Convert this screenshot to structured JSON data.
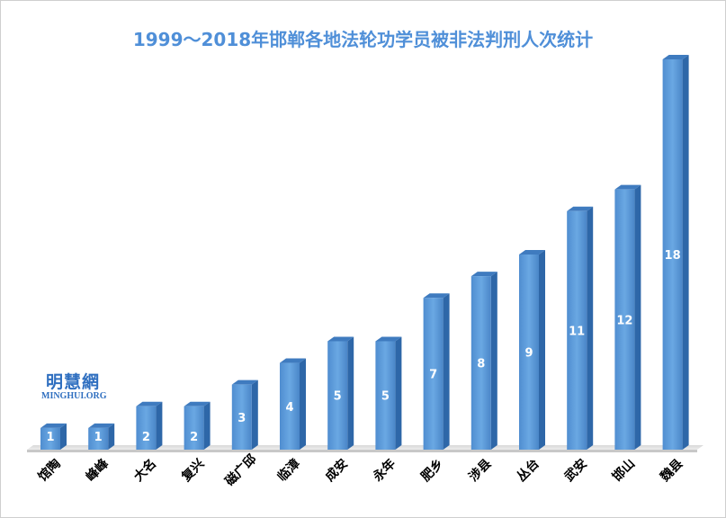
{
  "chart_data": {
    "type": "bar",
    "title": "1999～2018年邯郸各地法轮功学员被非法判刑人次统计",
    "categories": [
      "馆陶",
      "峰峰",
      "大名",
      "复兴",
      "磁广邱",
      "临漳",
      "成安",
      "永年",
      "肥乡",
      "涉县",
      "丛台",
      "武安",
      "邯山",
      "魏县"
    ],
    "values": [
      1,
      1,
      2,
      2,
      3,
      4,
      5,
      5,
      7,
      8,
      9,
      11,
      12,
      18
    ],
    "xlabel": "",
    "ylabel": "",
    "grid": false,
    "legend": "none",
    "data_labels": true,
    "colors": {
      "bar": "#5b9bd5",
      "bar_dark": "#2e67a8",
      "title": "#4f8fd8",
      "label": "#ffffff"
    }
  },
  "watermark": {
    "name_cn": "明慧網",
    "name_en": "MINGHUI.ORG"
  }
}
